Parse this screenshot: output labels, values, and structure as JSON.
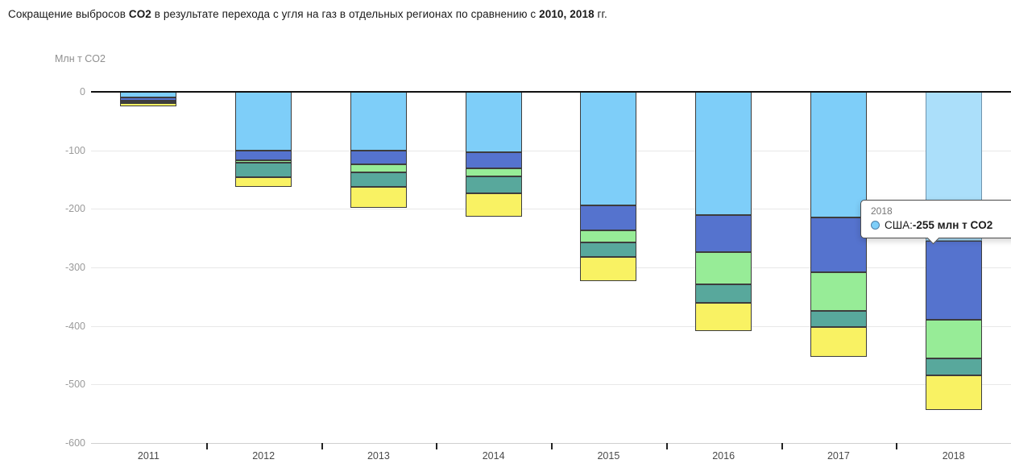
{
  "title": {
    "parts": [
      {
        "text": "Сокращение выбросов ",
        "bold": false
      },
      {
        "text": "CO2",
        "bold": true
      },
      {
        "text": " в результате перехода с угля на газ в отдельных регионах по сравнению с ",
        "bold": false
      },
      {
        "text": "2010, 2018",
        "bold": true
      },
      {
        "text": " гг.",
        "bold": false
      }
    ]
  },
  "chart_data": {
    "type": "bar",
    "stacked": true,
    "title": "Сокращение выбросов CO2 в результате перехода с угля на газ в отдельных регионах по сравнению с 2010, 2018 гг.",
    "ylabel": "Млн т CO2",
    "xlabel": "",
    "categories": [
      "2011",
      "2012",
      "2013",
      "2014",
      "2015",
      "2016",
      "2017",
      "2018"
    ],
    "yticks": [
      0,
      -100,
      -200,
      -300,
      -400,
      -500,
      -600
    ],
    "ylim": [
      -600,
      0
    ],
    "grid": true,
    "legend_position": "none",
    "series": [
      {
        "name": "США",
        "color": "#7ECEF9",
        "highlight_color": "#ABDFFA",
        "values": [
          -10,
          -100,
          -101,
          -103,
          -194,
          -210,
          -214,
          -255
        ]
      },
      {
        "name": "",
        "color": "#5573CE",
        "values": [
          -5,
          -17,
          -23,
          -28,
          -43,
          -64,
          -94,
          -134
        ]
      },
      {
        "name": "",
        "color": "#97EC97",
        "values": [
          -1,
          -4,
          -13,
          -14,
          -21,
          -55,
          -66,
          -67
        ]
      },
      {
        "name": "",
        "color": "#58A89C",
        "values": [
          -3,
          -25,
          -25,
          -28,
          -24,
          -31,
          -28,
          -29
        ]
      },
      {
        "name": "",
        "color": "#F9F263",
        "values": [
          -6,
          -17,
          -36,
          -41,
          -42,
          -49,
          -51,
          -58
        ]
      }
    ],
    "highlight": {
      "category": "2018",
      "series": "США"
    }
  },
  "tooltip": {
    "title": "2018",
    "label": "США: ",
    "value": "-255 млн т CO2",
    "marker_color": "#7ECEF9",
    "marker_border": "#4D7EA8"
  }
}
